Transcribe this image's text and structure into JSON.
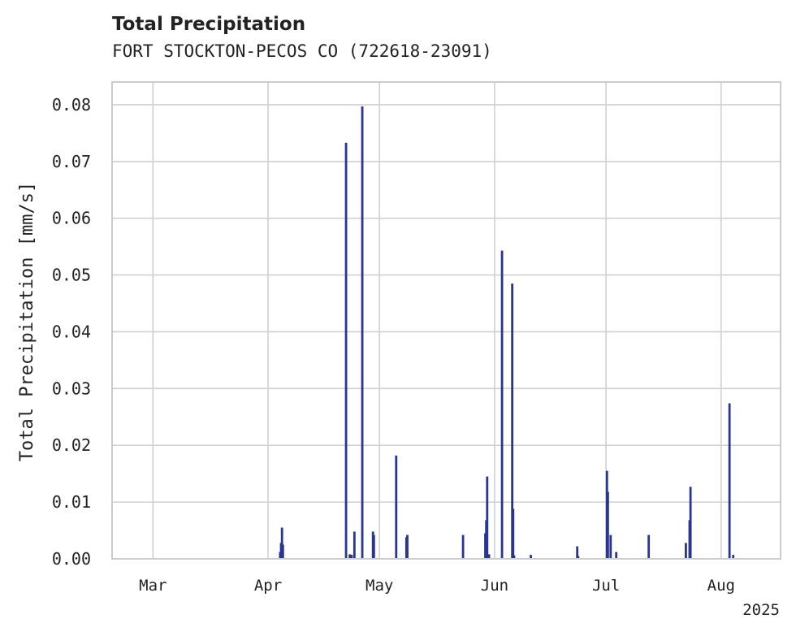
{
  "header": {
    "title": "Total Precipitation",
    "subtitle": "FORT STOCKTON-PECOS CO (722618-23091)"
  },
  "chart_data": {
    "type": "bar",
    "title": "Total Precipitation",
    "subtitle": "FORT STOCKTON-PECOS CO (722618-23091)",
    "xlabel": "",
    "ylabel": "Total Precipitation [mm/s]",
    "x_year_label": "2025",
    "xlim": [
      "2025-02-18",
      "2025-08-17"
    ],
    "ylim": [
      0.0,
      0.084
    ],
    "grid": true,
    "bar_color": "#283593",
    "x_ticks": [
      {
        "label": "Mar",
        "date": "2025-03-01"
      },
      {
        "label": "Apr",
        "date": "2025-04-01"
      },
      {
        "label": "May",
        "date": "2025-05-01"
      },
      {
        "label": "Jun",
        "date": "2025-06-01"
      },
      {
        "label": "Jul",
        "date": "2025-07-01"
      },
      {
        "label": "Aug",
        "date": "2025-08-01"
      }
    ],
    "y_ticks": [
      {
        "label": "0.00",
        "value": 0.0
      },
      {
        "label": "0.01",
        "value": 0.01
      },
      {
        "label": "0.02",
        "value": 0.02
      },
      {
        "label": "0.03",
        "value": 0.03
      },
      {
        "label": "0.04",
        "value": 0.04
      },
      {
        "label": "0.05",
        "value": 0.05
      },
      {
        "label": "0.06",
        "value": 0.06
      },
      {
        "label": "0.07",
        "value": 0.07
      },
      {
        "label": "0.08",
        "value": 0.08
      }
    ],
    "series": [
      {
        "name": "Total Precipitation",
        "points": [
          {
            "x": "2025-04-04T06:00",
            "y": 0.0012
          },
          {
            "x": "2025-04-04T12:00",
            "y": 0.0028
          },
          {
            "x": "2025-04-04T18:00",
            "y": 0.0055
          },
          {
            "x": "2025-04-05T00:00",
            "y": 0.0025
          },
          {
            "x": "2025-04-22T00:00",
            "y": 0.0733
          },
          {
            "x": "2025-04-23T00:00",
            "y": 0.0008
          },
          {
            "x": "2025-04-23T12:00",
            "y": 0.0007
          },
          {
            "x": "2025-04-24T06:00",
            "y": 0.0048
          },
          {
            "x": "2025-04-26T09:00",
            "y": 0.0797
          },
          {
            "x": "2025-04-29T06:00",
            "y": 0.0048
          },
          {
            "x": "2025-04-29T12:00",
            "y": 0.0042
          },
          {
            "x": "2025-05-05T12:00",
            "y": 0.0182
          },
          {
            "x": "2025-05-08T06:00",
            "y": 0.0038
          },
          {
            "x": "2025-05-08T12:00",
            "y": 0.0042
          },
          {
            "x": "2025-05-23T12:00",
            "y": 0.0042
          },
          {
            "x": "2025-05-29T12:00",
            "y": 0.0045
          },
          {
            "x": "2025-05-29T18:00",
            "y": 0.0068
          },
          {
            "x": "2025-05-30T00:00",
            "y": 0.0145
          },
          {
            "x": "2025-05-30T12:00",
            "y": 0.0008
          },
          {
            "x": "2025-06-03T00:00",
            "y": 0.0543
          },
          {
            "x": "2025-06-05T18:00",
            "y": 0.0485
          },
          {
            "x": "2025-06-06T00:00",
            "y": 0.0088
          },
          {
            "x": "2025-06-06T06:00",
            "y": 0.0006
          },
          {
            "x": "2025-06-10T18:00",
            "y": 0.0007
          },
          {
            "x": "2025-06-23T06:00",
            "y": 0.0022
          },
          {
            "x": "2025-06-23T12:00",
            "y": 0.0005
          },
          {
            "x": "2025-07-01T06:00",
            "y": 0.0155
          },
          {
            "x": "2025-07-01T12:00",
            "y": 0.0118
          },
          {
            "x": "2025-07-02T06:00",
            "y": 0.0042
          },
          {
            "x": "2025-07-03T18:00",
            "y": 0.0012
          },
          {
            "x": "2025-07-12T12:00",
            "y": 0.0042
          },
          {
            "x": "2025-07-22T12:00",
            "y": 0.0028
          },
          {
            "x": "2025-07-23T12:00",
            "y": 0.0068
          },
          {
            "x": "2025-07-23T18:00",
            "y": 0.0127
          },
          {
            "x": "2025-08-03T06:00",
            "y": 0.0274
          },
          {
            "x": "2025-08-04T06:00",
            "y": 0.0007
          }
        ]
      }
    ]
  }
}
